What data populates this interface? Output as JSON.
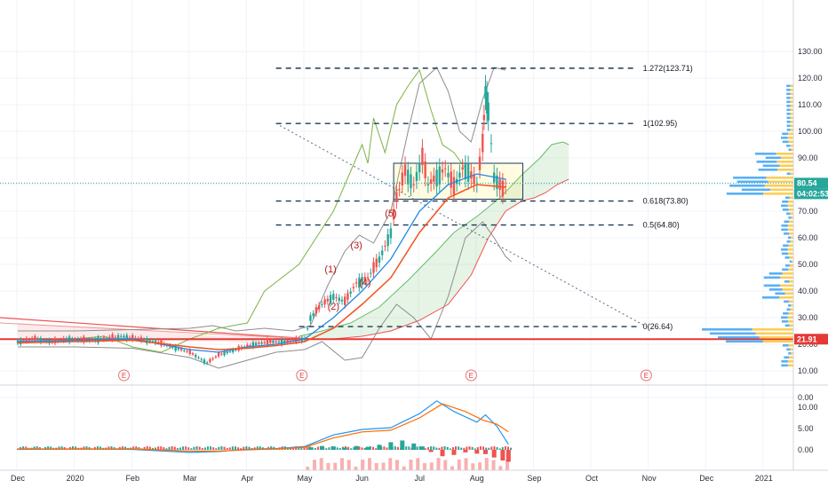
{
  "chart_data": {
    "type": "candlestick",
    "price_axis": {
      "ticks": [
        "130.00",
        "120.00",
        "110.00",
        "100.00",
        "90.00",
        "80.00",
        "70.00",
        "60.00",
        "50.00",
        "40.00",
        "30.00",
        "20.00",
        "10.00",
        "0.00"
      ]
    },
    "time_axis": {
      "labels": [
        "Dec",
        "2020",
        "Feb",
        "Mar",
        "Apr",
        "May",
        "Jun",
        "Jul",
        "Aug",
        "Sep",
        "Oct",
        "Nov",
        "Dec",
        "2021"
      ]
    },
    "price_tags": [
      {
        "label": "80.54",
        "color": "#26a69a"
      },
      {
        "label": "04:02:53",
        "color": "#26a69a"
      },
      {
        "label": "21.91",
        "color": "#e53935"
      }
    ],
    "fib_levels": [
      {
        "label": "1.272(123.71)",
        "value": 123.71
      },
      {
        "label": "1(102.95)",
        "value": 102.95
      },
      {
        "label": "0.618(73.80)",
        "value": 73.8
      },
      {
        "label": "0.5(64.80)",
        "value": 64.8
      },
      {
        "label": "0(26.64)",
        "value": 26.64
      }
    ],
    "wave_labels": [
      {
        "label": "(1)",
        "month": 5.45,
        "price": 47
      },
      {
        "label": "(2)",
        "month": 5.5,
        "price": 33
      },
      {
        "label": "(3)",
        "month": 5.9,
        "price": 56
      },
      {
        "label": "(4)",
        "month": 6.05,
        "price": 42
      },
      {
        "label": "(5)",
        "month": 6.5,
        "price": 68
      }
    ],
    "earnings_marker": "E",
    "earnings_months": [
      1.85,
      4.95,
      7.9,
      10.95
    ],
    "horizontal_line": 21.91,
    "current_price": 80.54,
    "consolidation_box": {
      "from_month": 6.55,
      "to_month": 8.8,
      "low": 74.5,
      "high": 88
    },
    "close_series": [
      [
        0.0,
        21
      ],
      [
        0.3,
        22
      ],
      [
        0.6,
        21
      ],
      [
        0.9,
        22
      ],
      [
        1.2,
        21.5
      ],
      [
        1.5,
        22
      ],
      [
        1.8,
        23
      ],
      [
        2.1,
        22
      ],
      [
        2.4,
        21
      ],
      [
        2.7,
        19
      ],
      [
        3.0,
        17
      ],
      [
        3.3,
        13
      ],
      [
        3.5,
        16
      ],
      [
        3.8,
        18
      ],
      [
        4.1,
        20
      ],
      [
        4.4,
        21
      ],
      [
        4.7,
        21
      ],
      [
        5.0,
        22
      ],
      [
        5.1,
        30
      ],
      [
        5.3,
        35
      ],
      [
        5.5,
        38
      ],
      [
        5.7,
        36
      ],
      [
        5.9,
        43
      ],
      [
        6.1,
        45
      ],
      [
        6.3,
        52
      ],
      [
        6.5,
        62
      ],
      [
        6.6,
        75
      ],
      [
        6.75,
        85
      ],
      [
        6.9,
        80
      ],
      [
        7.05,
        90
      ],
      [
        7.15,
        80
      ],
      [
        7.3,
        83
      ],
      [
        7.45,
        86
      ],
      [
        7.6,
        79
      ],
      [
        7.75,
        86
      ],
      [
        7.85,
        85
      ],
      [
        8.0,
        80
      ],
      [
        8.1,
        95
      ],
      [
        8.15,
        115
      ],
      [
        8.2,
        108
      ],
      [
        8.3,
        83
      ],
      [
        8.45,
        78
      ],
      [
        8.55,
        80.54
      ]
    ],
    "ma_fast": [
      [
        0,
        21
      ],
      [
        1,
        21.5
      ],
      [
        2,
        22
      ],
      [
        3,
        18
      ],
      [
        3.5,
        17
      ],
      [
        4,
        19
      ],
      [
        4.5,
        20
      ],
      [
        5,
        22
      ],
      [
        5.5,
        30
      ],
      [
        6,
        40
      ],
      [
        6.5,
        52
      ],
      [
        7,
        70
      ],
      [
        7.5,
        80
      ],
      [
        8,
        84
      ],
      [
        8.5,
        82
      ]
    ],
    "ma_slow": [
      [
        0,
        20.5
      ],
      [
        1,
        21
      ],
      [
        2,
        21.5
      ],
      [
        3,
        19
      ],
      [
        3.5,
        18
      ],
      [
        4,
        18.5
      ],
      [
        4.5,
        19.5
      ],
      [
        5,
        21
      ],
      [
        5.5,
        26
      ],
      [
        6,
        35
      ],
      [
        6.5,
        45
      ],
      [
        7,
        62
      ],
      [
        7.5,
        75
      ],
      [
        8,
        80
      ],
      [
        8.5,
        79
      ]
    ],
    "macd": {
      "axis_ticks": [
        "10.00",
        "5.00",
        "0.00"
      ],
      "macd_line": [
        [
          0,
          0.1
        ],
        [
          1,
          0.2
        ],
        [
          2,
          0.1
        ],
        [
          3,
          -0.6
        ],
        [
          3.5,
          -0.4
        ],
        [
          4,
          0.1
        ],
        [
          4.5,
          0.3
        ],
        [
          5,
          0.8
        ],
        [
          5.5,
          3.5
        ],
        [
          6,
          4.8
        ],
        [
          6.5,
          5.2
        ],
        [
          7,
          8.5
        ],
        [
          7.3,
          11.5
        ],
        [
          7.6,
          9
        ],
        [
          8,
          6.5
        ],
        [
          8.15,
          8.2
        ],
        [
          8.35,
          5.5
        ],
        [
          8.55,
          1.3
        ]
      ],
      "signal_line": [
        [
          0,
          0.2
        ],
        [
          1,
          0.2
        ],
        [
          2,
          0.2
        ],
        [
          3,
          -0.3
        ],
        [
          3.5,
          -0.3
        ],
        [
          4,
          0
        ],
        [
          4.5,
          0.2
        ],
        [
          5,
          0.6
        ],
        [
          5.5,
          2.8
        ],
        [
          6,
          4.2
        ],
        [
          6.5,
          4.6
        ],
        [
          7,
          7.5
        ],
        [
          7.4,
          10.8
        ],
        [
          7.8,
          9
        ],
        [
          8.1,
          7
        ],
        [
          8.35,
          6
        ],
        [
          8.55,
          4.2
        ]
      ],
      "histogram": [
        [
          5.1,
          0.6
        ],
        [
          5.3,
          0.9
        ],
        [
          5.5,
          0.8
        ],
        [
          5.7,
          0.5
        ],
        [
          5.9,
          0.9
        ],
        [
          6.1,
          0.7
        ],
        [
          6.3,
          1.2
        ],
        [
          6.5,
          1.8
        ],
        [
          6.7,
          2.2
        ],
        [
          6.9,
          1.5
        ],
        [
          7.05,
          0.8
        ],
        [
          7.2,
          -0.5
        ],
        [
          7.4,
          -1.5
        ],
        [
          7.6,
          -1.2
        ],
        [
          7.8,
          -0.6
        ],
        [
          8.0,
          -0.9
        ],
        [
          8.15,
          -1.0
        ],
        [
          8.3,
          -1.8
        ],
        [
          8.45,
          -2.5
        ],
        [
          8.55,
          -2.8
        ]
      ]
    }
  }
}
